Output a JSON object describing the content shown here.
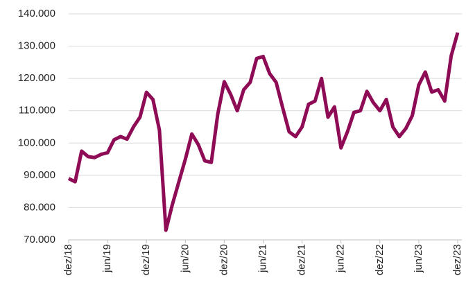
{
  "chart_data": {
    "type": "line",
    "categories": [
      "dez/18",
      null,
      null,
      null,
      null,
      null,
      "jun/19",
      null,
      null,
      null,
      null,
      null,
      "dez/19",
      null,
      null,
      null,
      null,
      null,
      "jun/20",
      null,
      null,
      null,
      null,
      null,
      "dez/20",
      null,
      null,
      null,
      null,
      null,
      "jun/21",
      null,
      null,
      null,
      null,
      null,
      "dez/21",
      null,
      null,
      null,
      null,
      null,
      "jun/22",
      null,
      null,
      null,
      null,
      null,
      "dez/22",
      null,
      null,
      null,
      null,
      null,
      "jun/23",
      null,
      null,
      null,
      null,
      null,
      "dez/23"
    ],
    "series": [
      {
        "color": "#8e0b56",
        "values": [
          89000,
          88000,
          97500,
          95800,
          95500,
          96500,
          97000,
          101000,
          102000,
          101200,
          105000,
          108000,
          115700,
          113500,
          104000,
          73000,
          81000,
          88000,
          95000,
          102800,
          99500,
          94500,
          94000,
          109000,
          119000,
          115000,
          110000,
          116500,
          118800,
          126200,
          126800,
          121500,
          118800,
          111000,
          103500,
          102000,
          105000,
          112000,
          113000,
          120000,
          108000,
          111200,
          98500,
          103500,
          109500,
          110000,
          116000,
          112500,
          110000,
          113500,
          105000,
          102000,
          104500,
          108500,
          118000,
          122000,
          115800,
          116500,
          113000,
          127000,
          134200
        ]
      }
    ],
    "ylim": [
      70000,
      140000
    ],
    "yticks": [
      {
        "value": 70000,
        "label": "70.000"
      },
      {
        "value": 80000,
        "label": "80.000"
      },
      {
        "value": 90000,
        "label": "90.000"
      },
      {
        "value": 100000,
        "label": "100.000"
      },
      {
        "value": 110000,
        "label": "110.000"
      },
      {
        "value": 120000,
        "label": "120.000"
      },
      {
        "value": 130000,
        "label": "130.000"
      },
      {
        "value": 140000,
        "label": "140.000"
      }
    ],
    "grid": true
  }
}
